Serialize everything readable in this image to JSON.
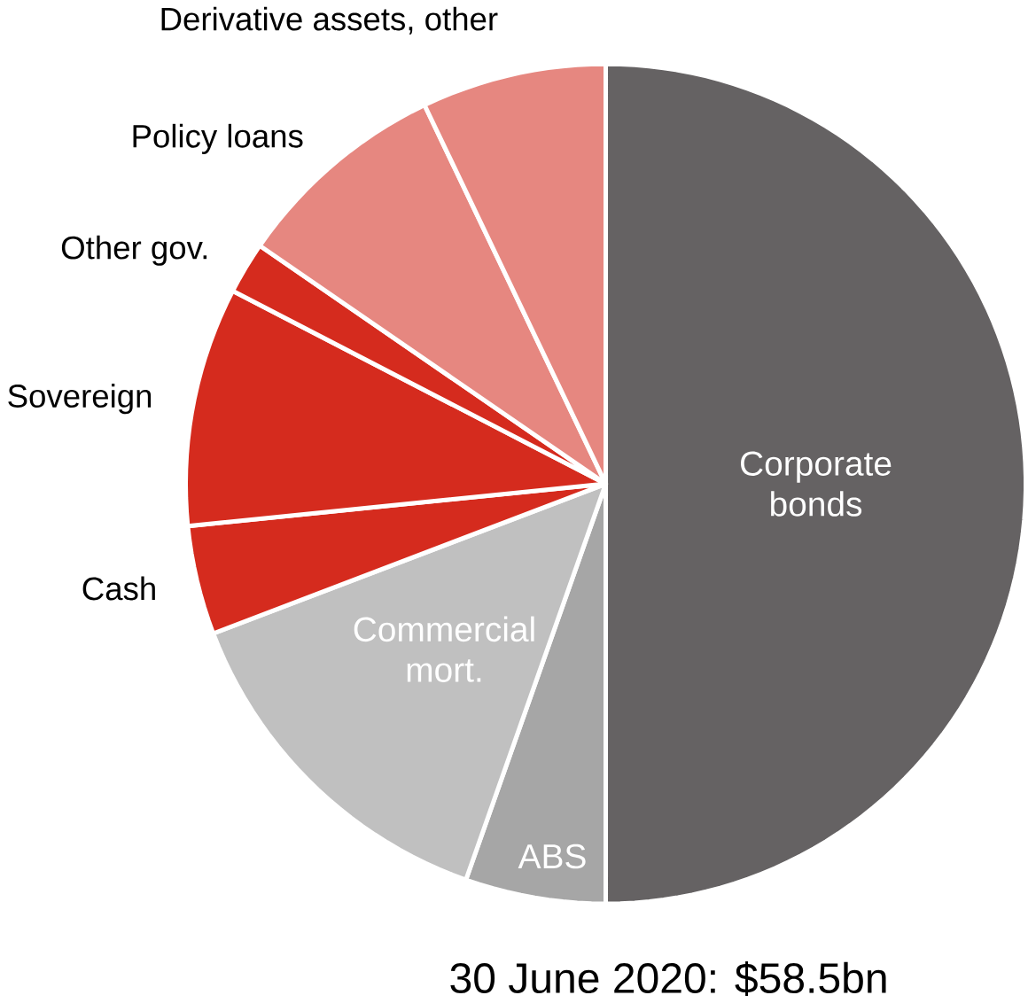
{
  "chart_data": {
    "type": "pie",
    "title": "30 June 2020: $58.5bn",
    "categories": [
      "Corporate bonds",
      "ABS",
      "Commercial mort.",
      "Cash",
      "Sovereign",
      "Other gov.",
      "Policy loans",
      "Derivative assets, other"
    ],
    "values": [
      50.0,
      5.4,
      13.8,
      4.2,
      9.2,
      2.0,
      8.3,
      7.1
    ],
    "colors": [
      "#656263",
      "#a6a6a6",
      "#c0c0c0",
      "#d52b1e",
      "#d52b1e",
      "#d52b1e",
      "#e68780",
      "#e68780"
    ]
  }
}
